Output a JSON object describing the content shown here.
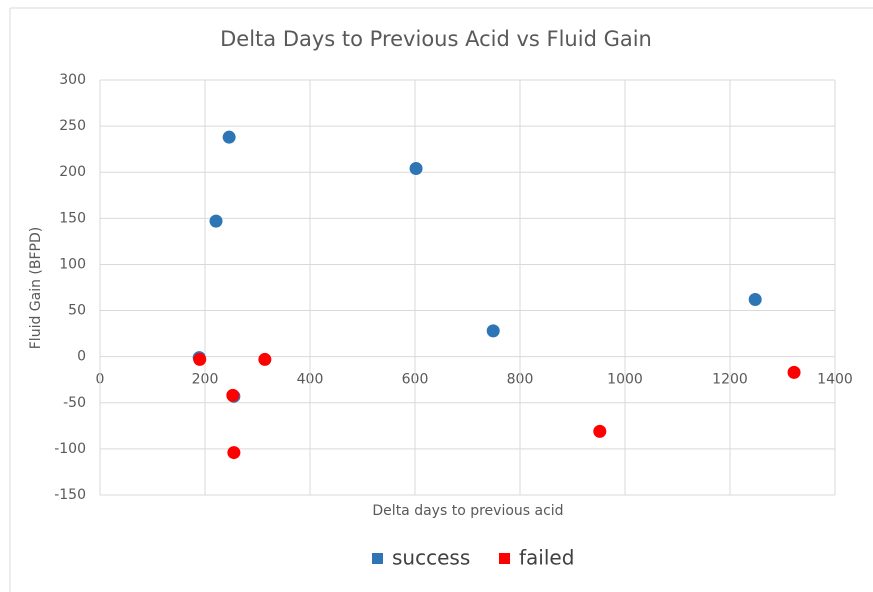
{
  "chart_data": {
    "type": "scatter",
    "title": "Delta Days to Previous Acid vs Fluid Gain",
    "x_label": "Delta days to previous acid",
    "y_label": "Fluid Gain (BFPD)",
    "xlim": [
      0,
      1400
    ],
    "xticks": [
      0,
      200,
      400,
      600,
      800,
      1000,
      1200,
      1400
    ],
    "ylim": [
      -150,
      300
    ],
    "yticks": [
      -150,
      -100,
      -50,
      0,
      50,
      100,
      150,
      200,
      250,
      300
    ],
    "grid": true,
    "legend": "bottom",
    "series": [
      {
        "name": "success",
        "color": "#2e75b6",
        "x": [
          189,
          246,
          221,
          602,
          749,
          1248,
          255
        ],
        "values": [
          -1,
          238,
          147,
          204,
          28,
          62,
          -43
        ]
      },
      {
        "name": "failed",
        "color": "#ff0000",
        "x": [
          190,
          253,
          255,
          314,
          952,
          1322
        ],
        "values": [
          -3,
          -42,
          -104,
          -3,
          -81,
          -17
        ]
      }
    ]
  }
}
